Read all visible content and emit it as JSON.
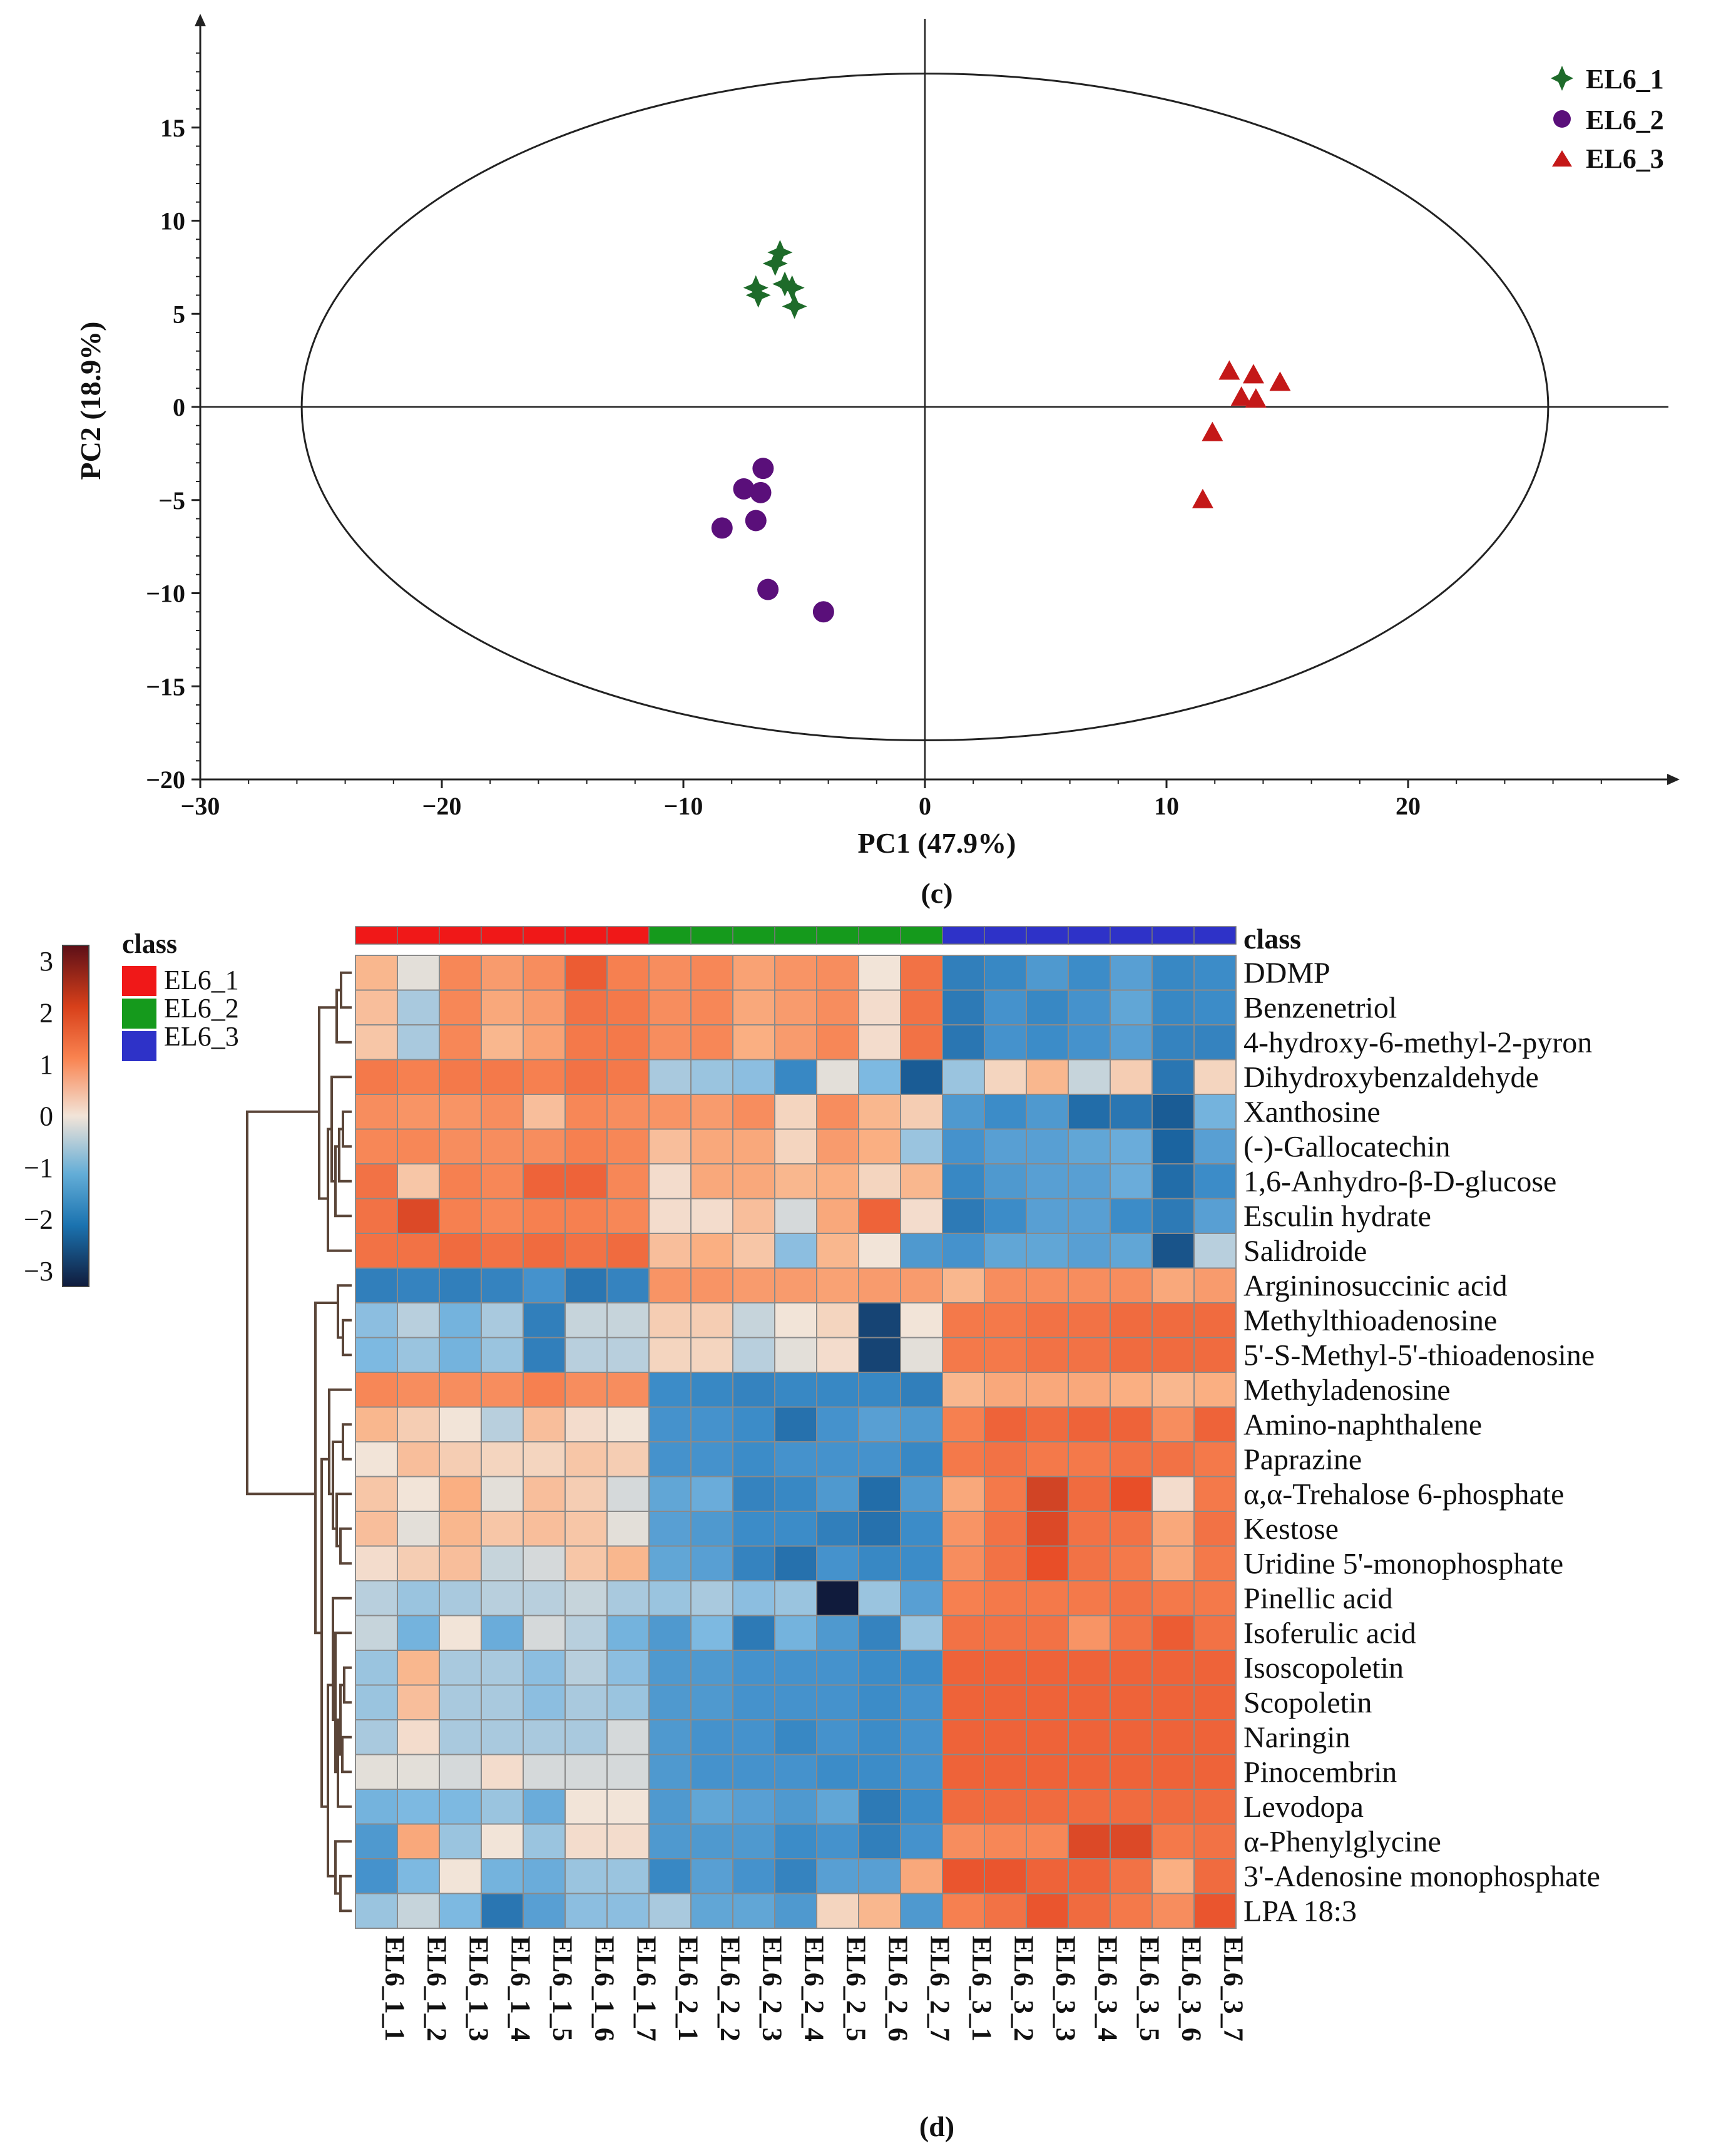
{
  "chart_data": [
    {
      "type": "scatter",
      "panel_label": "(c)",
      "xlabel": "PC1 (47.9%)",
      "ylabel": "PC2 (18.9%)",
      "xlim": [
        -30,
        30
      ],
      "ylim": [
        -20,
        20
      ],
      "xticks": [
        -30,
        -20,
        -10,
        0,
        10,
        20
      ],
      "yticks": [
        -20,
        -15,
        -10,
        -5,
        0,
        5,
        10,
        15
      ],
      "tick_labels_x": [
        "−30",
        "−20",
        "−10",
        "0",
        "10",
        "20"
      ],
      "tick_labels_y": [
        "−20",
        "−15",
        "−10",
        "−5",
        "0",
        "5",
        "10",
        "15"
      ],
      "confidence_ellipse": {
        "center": [
          0,
          0
        ],
        "rx": 25.8,
        "ry": 17.9
      },
      "legend": [
        "EL6_1",
        "EL6_2",
        "EL6_3"
      ],
      "series": [
        {
          "name": "EL6_1",
          "marker": "star",
          "color": "#1e6b2a",
          "points": [
            [
              -6.0,
              8.3
            ],
            [
              -6.2,
              7.7
            ],
            [
              -7.0,
              6.4
            ],
            [
              -6.9,
              6.0
            ],
            [
              -5.8,
              6.6
            ],
            [
              -5.5,
              6.4
            ],
            [
              -5.4,
              5.4
            ]
          ]
        },
        {
          "name": "EL6_2",
          "marker": "circle",
          "color": "#5a0f7a",
          "points": [
            [
              -6.7,
              -3.3
            ],
            [
              -7.5,
              -4.4
            ],
            [
              -6.8,
              -4.6
            ],
            [
              -8.4,
              -6.5
            ],
            [
              -7.0,
              -6.1
            ],
            [
              -6.5,
              -9.8
            ],
            [
              -4.2,
              -11.0
            ]
          ]
        },
        {
          "name": "EL6_3",
          "marker": "triangle",
          "color": "#c41818",
          "points": [
            [
              12.6,
              1.9
            ],
            [
              13.6,
              1.7
            ],
            [
              14.7,
              1.3
            ],
            [
              13.1,
              0.5
            ],
            [
              13.7,
              0.4
            ],
            [
              11.9,
              -1.4
            ],
            [
              11.5,
              -5.0
            ]
          ]
        }
      ]
    },
    {
      "type": "heatmap",
      "panel_label": "(d)",
      "class_title": "class",
      "class_header_right": "class",
      "legend_classes": [
        "EL6_1",
        "EL6_2",
        "EL6_3"
      ],
      "class_colors": {
        "EL6_1": "#f01818",
        "EL6_2": "#159a1c",
        "EL6_3": "#2e32c8"
      },
      "colorbar": {
        "min": -3.3,
        "max": 3.3,
        "ticks": [
          "3",
          "2",
          "1",
          "0",
          "−1",
          "−2",
          "−3"
        ]
      },
      "columns": [
        "EL6_1_1",
        "EL6_1_2",
        "EL6_1_3",
        "EL6_1_4",
        "EL6_1_5",
        "EL6_1_6",
        "EL6_1_7",
        "EL6_2_1",
        "EL6_2_2",
        "EL6_2_3",
        "EL6_2_4",
        "EL6_2_5",
        "EL6_2_6",
        "EL6_2_7",
        "EL6_3_1",
        "EL6_3_2",
        "EL6_3_3",
        "EL6_3_4",
        "EL6_3_5",
        "EL6_3_6",
        "EL6_3_7"
      ],
      "column_classes": [
        "EL6_1",
        "EL6_1",
        "EL6_1",
        "EL6_1",
        "EL6_1",
        "EL6_1",
        "EL6_1",
        "EL6_2",
        "EL6_2",
        "EL6_2",
        "EL6_2",
        "EL6_2",
        "EL6_2",
        "EL6_2",
        "EL6_3",
        "EL6_3",
        "EL6_3",
        "EL6_3",
        "EL6_3",
        "EL6_3",
        "EL6_3"
      ],
      "rows": [
        "DDMP",
        "Benzenetriol",
        "4-hydroxy-6-methyl-2-pyron",
        "Dihydroxybenzaldehyde",
        "Xanthosine",
        "(-)-Gallocatechin",
        "1,6-Anhydro-β-D-glucose",
        "Esculin hydrate",
        "Salidroide",
        "Argininosuccinic acid",
        "Methylthioadenosine",
        "5'-S-Methyl-5'-thioadenosine",
        "Methyladenosine",
        "Amino-naphthalene",
        "Paprazine",
        "α,α-Trehalose 6-phosphate",
        "Kestose",
        "Uridine 5'-monophosphate",
        "Pinellic acid",
        "Isoferulic acid",
        "Isoscopoletin",
        "Scopoletin",
        "Naringin",
        "Pinocembrin",
        "Levodopa",
        "α-Phenylglycine",
        "3'-Adenosine monophosphate",
        "LPA 18:3"
      ],
      "values": [
        [
          0.6,
          -0.1,
          1.3,
          1.0,
          1.2,
          1.9,
          1.4,
          1.2,
          1.3,
          0.9,
          1.1,
          1.2,
          0.0,
          1.6,
          -1.8,
          -1.6,
          -1.3,
          -1.5,
          -1.2,
          -1.6,
          -1.5
        ],
        [
          0.5,
          -0.5,
          1.3,
          0.8,
          1.0,
          1.6,
          1.5,
          1.2,
          1.3,
          0.8,
          1.0,
          1.2,
          0.1,
          1.6,
          -1.9,
          -1.4,
          -1.6,
          -1.4,
          -1.1,
          -1.6,
          -1.5
        ],
        [
          0.4,
          -0.5,
          1.3,
          0.6,
          0.9,
          1.5,
          1.5,
          1.2,
          1.3,
          0.7,
          1.0,
          1.3,
          0.1,
          1.6,
          -2.0,
          -1.4,
          -1.5,
          -1.4,
          -1.2,
          -1.7,
          -1.7
        ],
        [
          1.5,
          1.4,
          1.5,
          1.5,
          1.4,
          1.6,
          1.5,
          -0.5,
          -0.6,
          -0.7,
          -1.6,
          -0.1,
          -0.8,
          -2.5,
          -0.6,
          0.2,
          0.6,
          -0.3,
          0.3,
          -2.0,
          0.2
        ],
        [
          1.2,
          1.1,
          1.1,
          1.2,
          0.5,
          1.3,
          1.2,
          1.1,
          1.0,
          1.2,
          0.2,
          1.2,
          0.6,
          0.3,
          -1.3,
          -1.5,
          -1.3,
          -2.2,
          -2.0,
          -2.5,
          -0.9
        ],
        [
          1.3,
          1.3,
          1.2,
          1.2,
          1.2,
          1.4,
          1.3,
          0.5,
          0.8,
          0.8,
          0.2,
          1.0,
          0.7,
          -0.6,
          -1.4,
          -1.2,
          -1.2,
          -1.1,
          -1.0,
          -2.4,
          -1.2
        ],
        [
          1.6,
          0.4,
          1.4,
          1.3,
          1.8,
          1.8,
          1.3,
          0.1,
          0.8,
          0.8,
          0.6,
          0.7,
          0.2,
          0.6,
          -1.6,
          -1.3,
          -1.2,
          -1.2,
          -1.0,
          -2.2,
          -1.5
        ],
        [
          1.6,
          2.2,
          1.4,
          1.3,
          1.4,
          1.4,
          1.3,
          0.1,
          0.1,
          0.5,
          -0.2,
          0.8,
          1.8,
          0.1,
          -1.9,
          -1.5,
          -1.2,
          -1.2,
          -1.5,
          -1.9,
          -1.2
        ],
        [
          1.6,
          1.6,
          1.7,
          1.6,
          1.7,
          1.6,
          1.7,
          0.5,
          0.7,
          0.4,
          -0.7,
          0.6,
          0.0,
          -1.3,
          -1.4,
          -1.1,
          -1.1,
          -1.2,
          -1.1,
          -2.6,
          -0.4
        ],
        [
          -1.8,
          -1.7,
          -1.8,
          -1.7,
          -1.4,
          -2.0,
          -1.7,
          1.1,
          1.1,
          1.0,
          1.0,
          0.9,
          1.0,
          1.0,
          0.6,
          1.2,
          1.2,
          1.2,
          1.2,
          0.8,
          1.0
        ],
        [
          -0.7,
          -0.4,
          -0.9,
          -0.5,
          -1.8,
          -0.3,
          -0.3,
          0.3,
          0.3,
          -0.3,
          0.0,
          0.2,
          -2.8,
          0.0,
          1.5,
          1.5,
          1.6,
          1.6,
          1.7,
          1.7,
          1.7
        ],
        [
          -0.8,
          -0.6,
          -0.9,
          -0.6,
          -1.8,
          -0.4,
          -0.4,
          0.2,
          0.2,
          -0.4,
          -0.1,
          0.1,
          -2.8,
          -0.1,
          1.5,
          1.5,
          1.6,
          1.6,
          1.7,
          1.7,
          1.7
        ],
        [
          1.3,
          1.2,
          1.2,
          1.2,
          1.4,
          1.2,
          1.2,
          -1.5,
          -1.6,
          -1.7,
          -1.6,
          -1.6,
          -1.6,
          -1.8,
          0.6,
          0.8,
          0.8,
          0.8,
          0.7,
          0.6,
          0.7
        ],
        [
          0.6,
          0.3,
          0.0,
          -0.4,
          0.5,
          0.1,
          0.0,
          -1.4,
          -1.4,
          -1.5,
          -2.1,
          -1.4,
          -1.2,
          -1.3,
          1.4,
          1.8,
          1.7,
          1.8,
          1.8,
          1.2,
          1.8
        ],
        [
          0.0,
          0.5,
          0.3,
          0.2,
          0.2,
          0.4,
          0.3,
          -1.4,
          -1.4,
          -1.5,
          -1.4,
          -1.4,
          -1.4,
          -1.6,
          1.5,
          1.6,
          1.5,
          1.5,
          1.6,
          1.6,
          1.5
        ],
        [
          0.4,
          0.0,
          0.7,
          -0.1,
          0.5,
          0.3,
          -0.2,
          -1.1,
          -1.0,
          -1.7,
          -1.6,
          -1.3,
          -2.2,
          -1.3,
          0.8,
          1.5,
          2.3,
          1.7,
          2.1,
          0.1,
          1.5
        ],
        [
          0.5,
          -0.1,
          0.6,
          0.4,
          0.5,
          0.4,
          -0.1,
          -1.2,
          -1.3,
          -1.5,
          -1.5,
          -1.8,
          -2.1,
          -1.5,
          1.1,
          1.6,
          2.2,
          1.6,
          1.6,
          0.8,
          1.6
        ],
        [
          0.1,
          0.3,
          0.5,
          -0.3,
          -0.2,
          0.4,
          0.6,
          -1.1,
          -1.2,
          -1.7,
          -2.1,
          -1.4,
          -1.6,
          -1.5,
          1.2,
          1.6,
          2.1,
          1.6,
          1.5,
          0.8,
          1.5
        ],
        [
          -0.4,
          -0.6,
          -0.5,
          -0.4,
          -0.4,
          -0.3,
          -0.5,
          -0.6,
          -0.5,
          -0.7,
          -0.6,
          -3.3,
          -0.6,
          -1.2,
          1.4,
          1.5,
          1.5,
          1.5,
          1.6,
          1.5,
          1.5
        ],
        [
          -0.3,
          -0.9,
          0.0,
          -1.0,
          -0.2,
          -0.4,
          -0.9,
          -1.3,
          -0.8,
          -1.9,
          -0.9,
          -1.3,
          -1.7,
          -0.6,
          1.6,
          1.6,
          1.6,
          1.1,
          1.6,
          1.9,
          1.6
        ],
        [
          -0.6,
          0.6,
          -0.5,
          -0.5,
          -0.7,
          -0.4,
          -0.7,
          -1.3,
          -1.3,
          -1.4,
          -1.4,
          -1.4,
          -1.5,
          -1.5,
          1.8,
          1.8,
          1.8,
          1.8,
          1.8,
          1.8,
          1.8
        ],
        [
          -0.6,
          0.5,
          -0.5,
          -0.5,
          -0.7,
          -0.5,
          -0.6,
          -1.3,
          -1.3,
          -1.4,
          -1.4,
          -1.4,
          -1.5,
          -1.4,
          1.8,
          1.8,
          1.8,
          1.8,
          1.8,
          1.8,
          1.8
        ],
        [
          -0.5,
          0.1,
          -0.5,
          -0.5,
          -0.5,
          -0.5,
          -0.2,
          -1.3,
          -1.4,
          -1.4,
          -1.6,
          -1.4,
          -1.5,
          -1.4,
          1.8,
          1.8,
          1.8,
          1.8,
          1.8,
          1.8,
          1.8
        ],
        [
          -0.1,
          -0.1,
          -0.2,
          0.1,
          -0.2,
          -0.2,
          -0.2,
          -1.3,
          -1.4,
          -1.4,
          -1.4,
          -1.5,
          -1.5,
          -1.4,
          1.8,
          1.8,
          1.8,
          1.8,
          1.8,
          1.8,
          1.8
        ],
        [
          -0.9,
          -0.8,
          -0.8,
          -0.6,
          -1.0,
          0.0,
          0.0,
          -1.3,
          -1.1,
          -1.2,
          -1.3,
          -1.1,
          -1.9,
          -1.5,
          1.7,
          1.7,
          1.7,
          1.7,
          1.7,
          1.7,
          1.7
        ],
        [
          -1.3,
          0.8,
          -0.6,
          0.0,
          -0.6,
          0.1,
          0.1,
          -1.3,
          -1.3,
          -1.3,
          -1.5,
          -1.4,
          -1.8,
          -1.4,
          1.2,
          1.3,
          1.3,
          2.2,
          2.2,
          1.5,
          1.6
        ],
        [
          -1.4,
          -0.8,
          0.0,
          -0.9,
          -1.0,
          -0.6,
          -0.6,
          -1.6,
          -1.2,
          -1.4,
          -1.7,
          -1.2,
          -1.2,
          0.8,
          2.0,
          2.0,
          1.8,
          1.8,
          1.6,
          0.7,
          1.7
        ],
        [
          -0.6,
          -0.3,
          -0.8,
          -2.0,
          -1.2,
          -0.7,
          -0.7,
          -0.5,
          -1.1,
          -1.1,
          -1.3,
          0.2,
          0.6,
          -1.3,
          1.4,
          1.6,
          2.0,
          1.7,
          1.5,
          1.2,
          2.0
        ]
      ]
    }
  ]
}
